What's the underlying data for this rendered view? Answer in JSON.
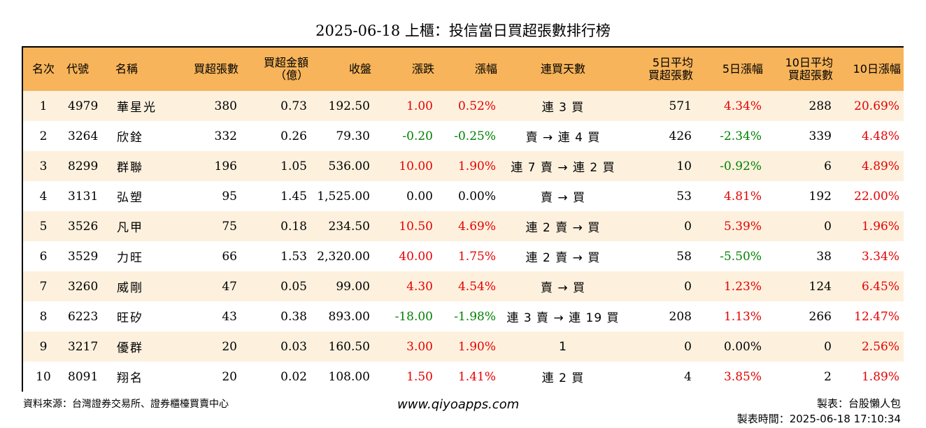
{
  "title": "2025-06-18 上櫃：投信當日買超張數排行榜",
  "colors": {
    "header_bg": "#F7B45A",
    "row_odd": "#FDF1DE",
    "up": "#E60000",
    "down": "#008000"
  },
  "headers": {
    "rank": "名次",
    "code": "代號",
    "name": "名稱",
    "buy_shares": "買超張數",
    "amount_l1": "買超金額",
    "amount_l2": "（億）",
    "close": "收盤",
    "change": "漲跌",
    "pct": "漲幅",
    "streak": "連買天數",
    "avg5_l1": "5日平均",
    "avg5_l2": "買超張數",
    "pct5": "5日漲幅",
    "avg10_l1": "10日平均",
    "avg10_l2": "買超張數",
    "pct10": "10日漲幅"
  },
  "rows": [
    {
      "rank": "1",
      "code": "4979",
      "name": "華星光",
      "buy": "380",
      "amount": "0.73",
      "close": "192.50",
      "change": "1.00",
      "change_dir": "up",
      "pct": "0.52%",
      "pct_dir": "up",
      "streak": "連 3 買",
      "avg5": "571",
      "pct5": "4.34%",
      "pct5_dir": "up",
      "avg10": "288",
      "pct10": "20.69%",
      "pct10_dir": "up"
    },
    {
      "rank": "2",
      "code": "3264",
      "name": "欣銓",
      "buy": "332",
      "amount": "0.26",
      "close": "79.30",
      "change": "-0.20",
      "change_dir": "down",
      "pct": "-0.25%",
      "pct_dir": "down",
      "streak": "賣 → 連 4 買",
      "avg5": "426",
      "pct5": "-2.34%",
      "pct5_dir": "down",
      "avg10": "339",
      "pct10": "4.48%",
      "pct10_dir": "up"
    },
    {
      "rank": "3",
      "code": "8299",
      "name": "群聯",
      "buy": "196",
      "amount": "1.05",
      "close": "536.00",
      "change": "10.00",
      "change_dir": "up",
      "pct": "1.90%",
      "pct_dir": "up",
      "streak": "連 7 賣 → 連 2 買",
      "avg5": "10",
      "pct5": "-0.92%",
      "pct5_dir": "down",
      "avg10": "6",
      "pct10": "4.89%",
      "pct10_dir": "up"
    },
    {
      "rank": "4",
      "code": "3131",
      "name": "弘塑",
      "buy": "95",
      "amount": "1.45",
      "close": "1,525.00",
      "change": "0.00",
      "change_dir": "flat",
      "pct": "0.00%",
      "pct_dir": "flat",
      "streak": "賣 → 買",
      "avg5": "53",
      "pct5": "4.81%",
      "pct5_dir": "up",
      "avg10": "192",
      "pct10": "22.00%",
      "pct10_dir": "up"
    },
    {
      "rank": "5",
      "code": "3526",
      "name": "凡甲",
      "buy": "75",
      "amount": "0.18",
      "close": "234.50",
      "change": "10.50",
      "change_dir": "up",
      "pct": "4.69%",
      "pct_dir": "up",
      "streak": "連 2 賣 → 買",
      "avg5": "0",
      "pct5": "5.39%",
      "pct5_dir": "up",
      "avg10": "0",
      "pct10": "1.96%",
      "pct10_dir": "up"
    },
    {
      "rank": "6",
      "code": "3529",
      "name": "力旺",
      "buy": "66",
      "amount": "1.53",
      "close": "2,320.00",
      "change": "40.00",
      "change_dir": "up",
      "pct": "1.75%",
      "pct_dir": "up",
      "streak": "連 2 賣 → 買",
      "avg5": "58",
      "pct5": "-5.50%",
      "pct5_dir": "down",
      "avg10": "38",
      "pct10": "3.34%",
      "pct10_dir": "up"
    },
    {
      "rank": "7",
      "code": "3260",
      "name": "威剛",
      "buy": "47",
      "amount": "0.05",
      "close": "99.00",
      "change": "4.30",
      "change_dir": "up",
      "pct": "4.54%",
      "pct_dir": "up",
      "streak": "賣 → 買",
      "avg5": "0",
      "pct5": "1.23%",
      "pct5_dir": "up",
      "avg10": "124",
      "pct10": "6.45%",
      "pct10_dir": "up"
    },
    {
      "rank": "8",
      "code": "6223",
      "name": "旺矽",
      "buy": "43",
      "amount": "0.38",
      "close": "893.00",
      "change": "-18.00",
      "change_dir": "down",
      "pct": "-1.98%",
      "pct_dir": "down",
      "streak": "連 3 賣 → 連 19 買",
      "avg5": "208",
      "pct5": "1.13%",
      "pct5_dir": "up",
      "avg10": "266",
      "pct10": "12.47%",
      "pct10_dir": "up"
    },
    {
      "rank": "9",
      "code": "3217",
      "name": "優群",
      "buy": "20",
      "amount": "0.03",
      "close": "160.50",
      "change": "3.00",
      "change_dir": "up",
      "pct": "1.90%",
      "pct_dir": "up",
      "streak": "1",
      "avg5": "0",
      "pct5": "0.00%",
      "pct5_dir": "flat",
      "avg10": "0",
      "pct10": "2.56%",
      "pct10_dir": "up"
    },
    {
      "rank": "10",
      "code": "8091",
      "name": "翔名",
      "buy": "20",
      "amount": "0.02",
      "close": "108.00",
      "change": "1.50",
      "change_dir": "up",
      "pct": "1.41%",
      "pct_dir": "up",
      "streak": "連 2 買",
      "avg5": "4",
      "pct5": "3.85%",
      "pct5_dir": "up",
      "avg10": "2",
      "pct10": "1.89%",
      "pct10_dir": "up"
    }
  ],
  "footer": {
    "source": "資料來源：台灣證券交易所、證券櫃檯買賣中心",
    "website": "www.qiyoapps.com",
    "maker": "製表：台股懶人包",
    "made_time": "製表時間：2025-06-18 17:10:34"
  }
}
